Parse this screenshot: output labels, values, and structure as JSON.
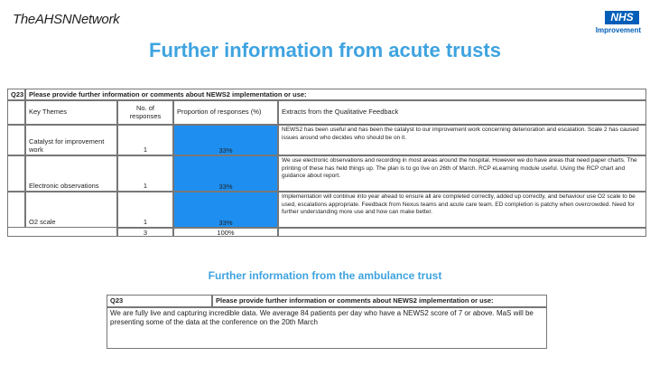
{
  "header": {
    "logo_left": "TheAHSNNetwork",
    "logo_right_badge": "NHS",
    "logo_right_text": "Improvement"
  },
  "title": "Further information from acute trusts",
  "table1": {
    "question_no": "Q23",
    "question": "Please provide further information or comments about NEWS2 implementation or use:",
    "columns": [
      "Key Themes",
      "No. of responses",
      "Proportion of responses (%)",
      "Extracts from the Qualitative Feedback"
    ],
    "rows": [
      {
        "theme": "Catalyst for improvement work",
        "responses": 1,
        "proportion": 33,
        "proportion_label": "33%",
        "extract": "NEWS2 has been useful and has been the catalyst to our improvement work concerning deterioration and escalation. Scale 2 has caused issues around who decides who should be on it."
      },
      {
        "theme": "Electronic observations",
        "responses": 1,
        "proportion": 33,
        "proportion_label": "33%",
        "extract": "We use electronic observations and recording in most areas around the hospital. However we do have areas that need paper charts. The printing of these has held things up. The plan is to go live on 26th of March. RCP eLearning module useful. Using the RCP chart and guidance about report."
      },
      {
        "theme": "O2 scale",
        "responses": 1,
        "proportion": 33,
        "proportion_label": "33%",
        "extract": "Implementation will continue into year ahead to ensure all are completed correctly, added up correctly, and behaviour use O2 scale to be used, escalations appropriate. Feedback from Nexus teams and acute care team. ED completion is patchy when overcrowded. Need for further understanding more use and how can make better."
      }
    ],
    "total_responses": 3,
    "total_proportion": 100,
    "total_proportion_label": "100%"
  },
  "subtitle": "Further information from the ambulance trust",
  "table2": {
    "question_no": "Q23",
    "question": "Please provide further information or comments about NEWS2 implementation or use:",
    "answer": "We are fully live and capturing incredible data. We average 84 patients per day who have a NEWS2 score of 7 or above. MaS will be presenting some of the data at the conference on the 20th March"
  }
}
